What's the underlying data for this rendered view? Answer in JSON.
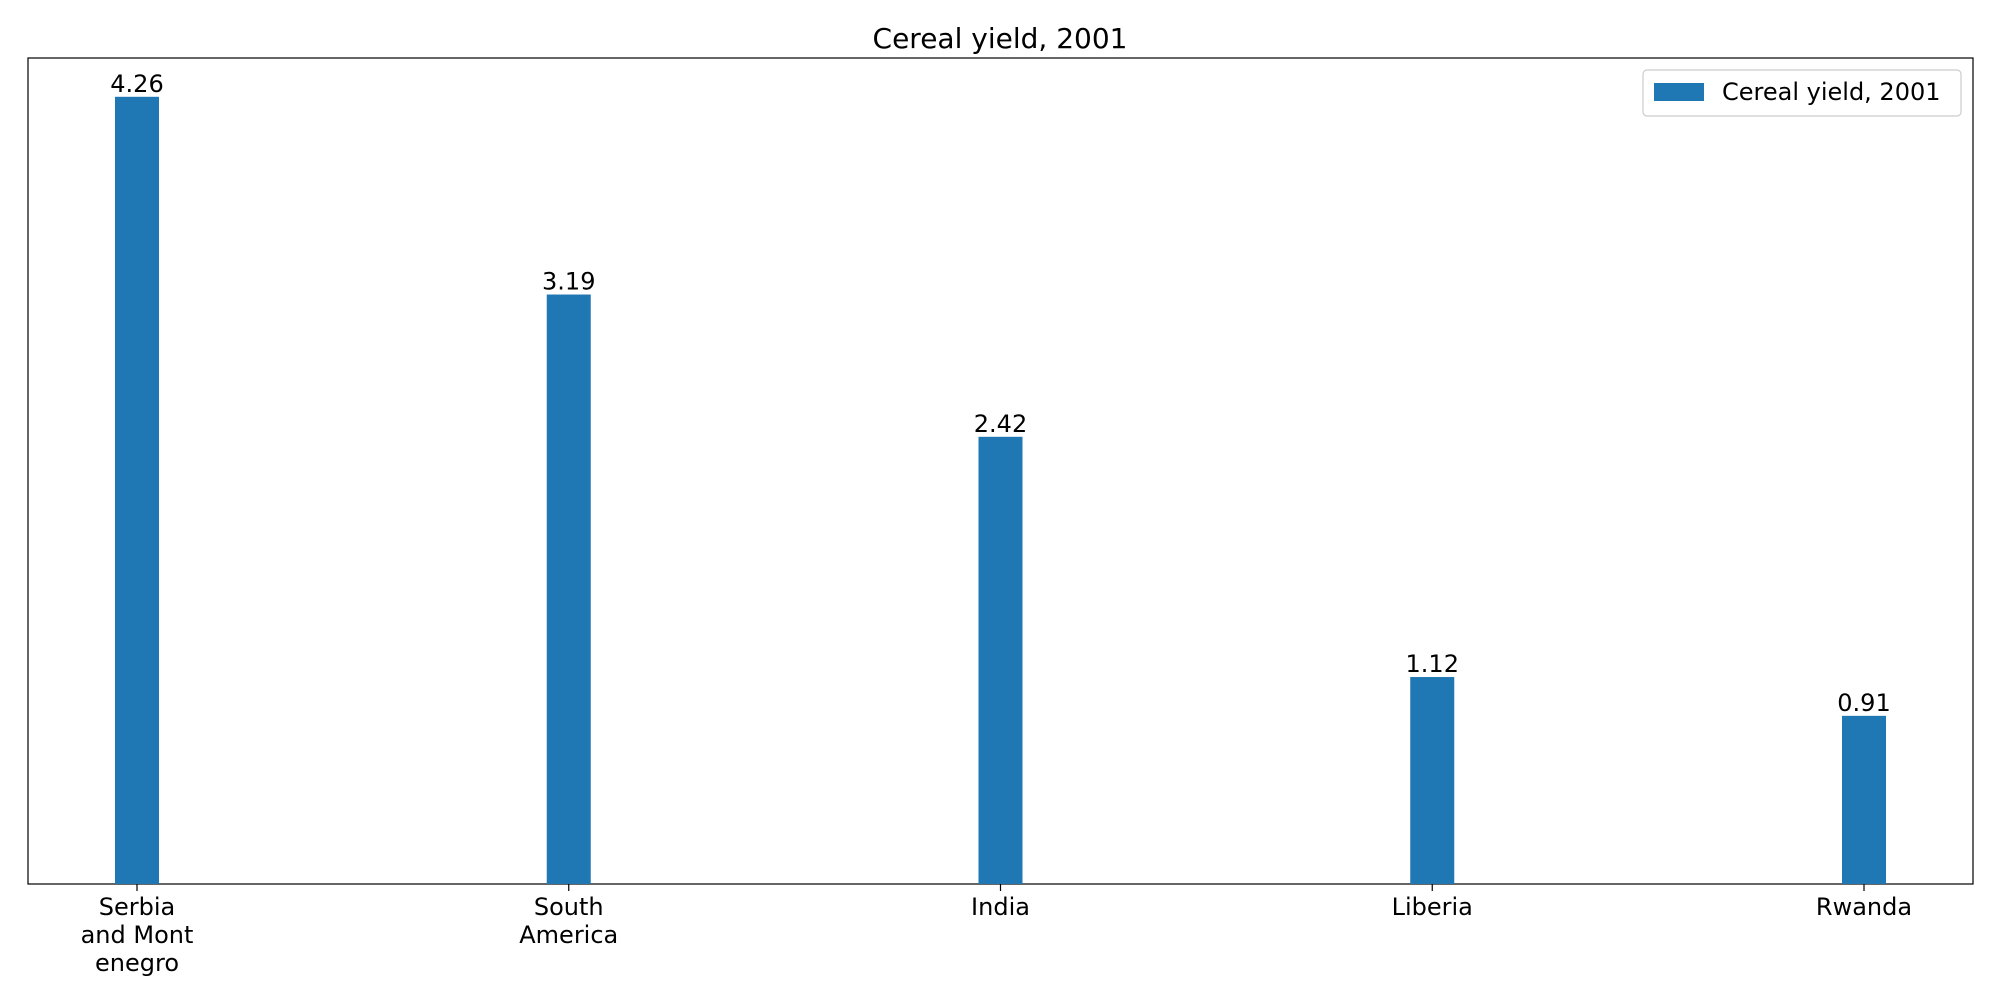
{
  "chart_data": {
    "type": "bar",
    "title": "Cereal yield, 2001",
    "xlabel": "",
    "ylabel": "",
    "categories": [
      [
        "Serbia",
        "and Mont",
        "enegro"
      ],
      [
        "South",
        "America"
      ],
      [
        "India"
      ],
      [
        "Liberia"
      ],
      [
        "Rwanda"
      ]
    ],
    "series": [
      {
        "name": "Cereal yield, 2001",
        "values": [
          4.26,
          3.19,
          2.42,
          1.12,
          0.91
        ],
        "labels": [
          "4.26",
          "3.19",
          "2.42",
          "1.12",
          "0.91"
        ],
        "color": "#1f77b4"
      }
    ],
    "ylim": [
      0,
      4.47
    ],
    "grid": false,
    "y_ticks_visible": false,
    "legend_position": "top-right"
  }
}
